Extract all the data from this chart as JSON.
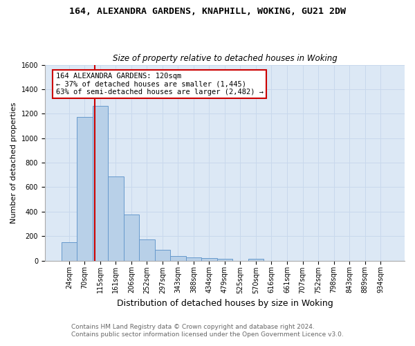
{
  "title1": "164, ALEXANDRA GARDENS, KNAPHILL, WOKING, GU21 2DW",
  "title2": "Size of property relative to detached houses in Woking",
  "xlabel": "Distribution of detached houses by size in Woking",
  "ylabel": "Number of detached properties",
  "footer1": "Contains HM Land Registry data © Crown copyright and database right 2024.",
  "footer2": "Contains public sector information licensed under the Open Government Licence v3.0.",
  "bar_labels": [
    "24sqm",
    "70sqm",
    "115sqm",
    "161sqm",
    "206sqm",
    "252sqm",
    "297sqm",
    "343sqm",
    "388sqm",
    "434sqm",
    "479sqm",
    "525sqm",
    "570sqm",
    "616sqm",
    "661sqm",
    "707sqm",
    "752sqm",
    "798sqm",
    "843sqm",
    "889sqm",
    "934sqm"
  ],
  "bar_values": [
    150,
    1175,
    1265,
    685,
    375,
    170,
    90,
    38,
    28,
    18,
    15,
    0,
    15,
    0,
    0,
    0,
    0,
    0,
    0,
    0,
    0
  ],
  "bar_color": "#b8d0e8",
  "bar_edge_color": "#6699cc",
  "red_line_bar_index": 2,
  "annotation_text1": "164 ALEXANDRA GARDENS: 120sqm",
  "annotation_text2": "← 37% of detached houses are smaller (1,445)",
  "annotation_text3": "63% of semi-detached houses are larger (2,482) →",
  "annotation_box_facecolor": "#ffffff",
  "annotation_box_edgecolor": "#cc0000",
  "ylim": [
    0,
    1600
  ],
  "yticks": [
    0,
    200,
    400,
    600,
    800,
    1000,
    1200,
    1400,
    1600
  ],
  "grid_color": "#c8d8ec",
  "plot_bg_color": "#dce8f5",
  "fig_bg_color": "#ffffff",
  "title1_fontsize": 9.5,
  "title2_fontsize": 8.5,
  "xlabel_fontsize": 9,
  "ylabel_fontsize": 8,
  "tick_fontsize": 7,
  "annotation_fontsize": 7.5,
  "footer_fontsize": 6.5
}
